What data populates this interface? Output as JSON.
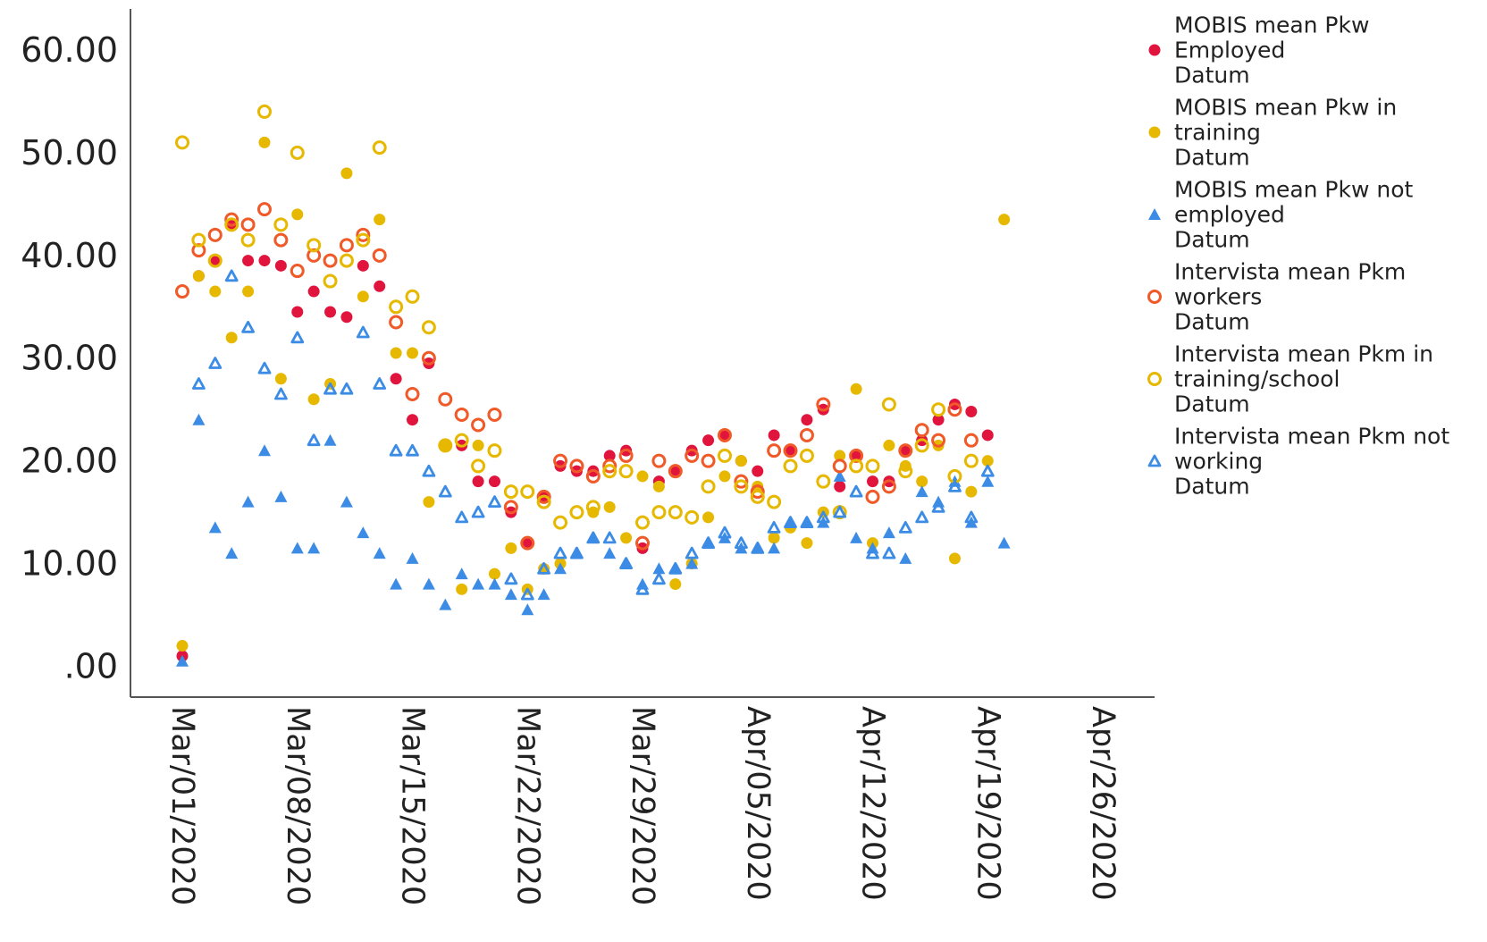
{
  "chart_data": {
    "type": "scatter",
    "title": "",
    "xlabel": "",
    "ylabel": "",
    "x_axis": {
      "type": "date",
      "range": [
        "2020-03-01",
        "2020-04-26"
      ],
      "ticks": [
        "2020-03-01",
        "2020-03-08",
        "2020-03-15",
        "2020-03-22",
        "2020-03-29",
        "2020-04-05",
        "2020-04-12",
        "2020-04-19",
        "2020-04-26"
      ],
      "tick_labels": [
        "Mar/01/2020",
        "Mar/08/2020",
        "Mar/15/2020",
        "Mar/22/2020",
        "Mar/29/2020",
        "Apr/05/2020",
        "Apr/12/2020",
        "Apr/19/2020",
        "Apr/26/2020"
      ]
    },
    "y_axis": {
      "range": [
        -3,
        64
      ],
      "ticks": [
        0,
        10,
        20,
        30,
        40,
        50,
        60
      ],
      "tick_labels": [
        ".00",
        "10.00",
        "20.00",
        "30.00",
        "40.00",
        "50.00",
        "60.00"
      ]
    },
    "grid": false,
    "legend_position": "right",
    "x": [
      "2020-03-01",
      "2020-03-02",
      "2020-03-03",
      "2020-03-04",
      "2020-03-05",
      "2020-03-06",
      "2020-03-07",
      "2020-03-08",
      "2020-03-09",
      "2020-03-10",
      "2020-03-11",
      "2020-03-12",
      "2020-03-13",
      "2020-03-14",
      "2020-03-15",
      "2020-03-16",
      "2020-03-17",
      "2020-03-18",
      "2020-03-19",
      "2020-03-20",
      "2020-03-21",
      "2020-03-22",
      "2020-03-23",
      "2020-03-24",
      "2020-03-25",
      "2020-03-26",
      "2020-03-27",
      "2020-03-28",
      "2020-03-29",
      "2020-03-30",
      "2020-03-31",
      "2020-04-01",
      "2020-04-02",
      "2020-04-03",
      "2020-04-04",
      "2020-04-05",
      "2020-04-06",
      "2020-04-07",
      "2020-04-08",
      "2020-04-09",
      "2020-04-10",
      "2020-04-11",
      "2020-04-12",
      "2020-04-13",
      "2020-04-14",
      "2020-04-15",
      "2020-04-16",
      "2020-04-17",
      "2020-04-18",
      "2020-04-19",
      "2020-04-20"
    ],
    "series": [
      {
        "name": "MOBIS mean Pkw Employed Datum",
        "legend_lines": [
          "MOBIS mean Pkw",
          "Employed",
          " Datum"
        ],
        "marker": "filled-circle",
        "color": "#E0143C",
        "values": [
          1,
          38,
          39.5,
          43,
          39.5,
          39.5,
          39,
          34.5,
          36.5,
          34.5,
          34,
          39,
          37,
          28,
          24,
          29.5,
          21.5,
          21.5,
          18,
          18,
          15,
          12,
          16.5,
          19.5,
          19,
          19,
          20.5,
          21,
          11.5,
          18,
          19,
          21,
          22,
          22.5,
          20,
          19,
          22.5,
          21,
          24,
          25,
          17.5,
          20.5,
          18,
          18,
          21,
          22,
          24,
          25.5,
          24.8,
          22.5,
          null
        ]
      },
      {
        "name": "MOBIS mean Pkw in training Datum",
        "legend_lines": [
          "MOBIS mean Pkw in",
          "training",
          " Datum"
        ],
        "marker": "filled-circle",
        "color": "#E6B800",
        "values": [
          2,
          38,
          36.5,
          32,
          36.5,
          51,
          28,
          44,
          26,
          27.5,
          48,
          36,
          43.5,
          30.5,
          30.5,
          16,
          21.5,
          7.5,
          21.5,
          9,
          11.5,
          7.5,
          9.5,
          10,
          null,
          15,
          15.5,
          12.5,
          18.5,
          17.5,
          8,
          10,
          14.5,
          18.5,
          20,
          17.5,
          12.5,
          13.5,
          12,
          15,
          20.5,
          27,
          12,
          21.5,
          19.5,
          18,
          21.5,
          10.5,
          17,
          20,
          43.5
        ]
      },
      {
        "name": "MOBIS mean Pkw not employed Datum",
        "legend_lines": [
          "MOBIS mean Pkw not",
          "employed",
          " Datum"
        ],
        "marker": "filled-triangle",
        "color": "#3C8CE6",
        "values": [
          0.5,
          24,
          13.5,
          11,
          16,
          21,
          16.5,
          11.5,
          11.5,
          22,
          16,
          13,
          11,
          8,
          10.5,
          8,
          6,
          9,
          8,
          8,
          7,
          5.5,
          7,
          9.5,
          11,
          12.5,
          11,
          10,
          8,
          9.5,
          9.5,
          10,
          12,
          12.5,
          11.5,
          11.5,
          11.5,
          14,
          14,
          14,
          18.5,
          12.5,
          11.5,
          13,
          10.5,
          17,
          16,
          18,
          14,
          18,
          12
        ]
      },
      {
        "name": "Intervista mean Pkm workers Datum",
        "legend_lines": [
          "Intervista mean Pkm",
          "workers",
          " Datum"
        ],
        "marker": "open-circle",
        "color": "#F05A28",
        "values": [
          36.5,
          40.5,
          42,
          43.5,
          43,
          44.5,
          41.5,
          38.5,
          40,
          39.5,
          41,
          42,
          40,
          33.5,
          26.5,
          30,
          26,
          24.5,
          23.5,
          24.5,
          15.5,
          12,
          16.5,
          20,
          19.5,
          18.5,
          19.5,
          20.5,
          12,
          20,
          19,
          20.5,
          20,
          22.5,
          18,
          17,
          21,
          21,
          22.5,
          25.5,
          19.5,
          20.5,
          16.5,
          17.5,
          21,
          23,
          22,
          25,
          22,
          null,
          null
        ]
      },
      {
        "name": "Intervista mean Pkm in training/school Datum",
        "legend_lines": [
          "Intervista mean Pkm in",
          "training/school",
          " Datum"
        ],
        "marker": "open-circle",
        "color": "#E6B800",
        "values": [
          51,
          41.5,
          39.5,
          43,
          41.5,
          54,
          43,
          50,
          41,
          37.5,
          39.5,
          41.5,
          50.5,
          35,
          36,
          33,
          21.5,
          22,
          19.5,
          21,
          17,
          17,
          16,
          14,
          15,
          15.5,
          19,
          19,
          14,
          15,
          15,
          14.5,
          17.5,
          20.5,
          17.5,
          16.5,
          16,
          19.5,
          20.5,
          18,
          15,
          19.5,
          19.5,
          25.5,
          19,
          21.5,
          25,
          18.5,
          20,
          null,
          null
        ]
      },
      {
        "name": "Intervista mean Pkm not working Datum",
        "legend_lines": [
          "Intervista mean Pkm not",
          "working",
          " Datum"
        ],
        "marker": "open-triangle",
        "color": "#3C8CE6",
        "values": [
          null,
          27.5,
          29.5,
          38,
          33,
          29,
          26.5,
          32,
          22,
          27,
          27,
          32.5,
          27.5,
          21,
          21,
          19,
          17,
          14.5,
          15,
          16,
          8.5,
          7,
          9.5,
          11,
          11,
          12.5,
          12.5,
          10,
          7.5,
          8.5,
          9.5,
          11,
          12,
          13,
          12,
          11.5,
          13.5,
          14,
          14,
          14.5,
          15,
          17,
          11,
          11,
          13.5,
          14.5,
          15.5,
          17.5,
          14.5,
          19,
          null
        ]
      }
    ]
  }
}
